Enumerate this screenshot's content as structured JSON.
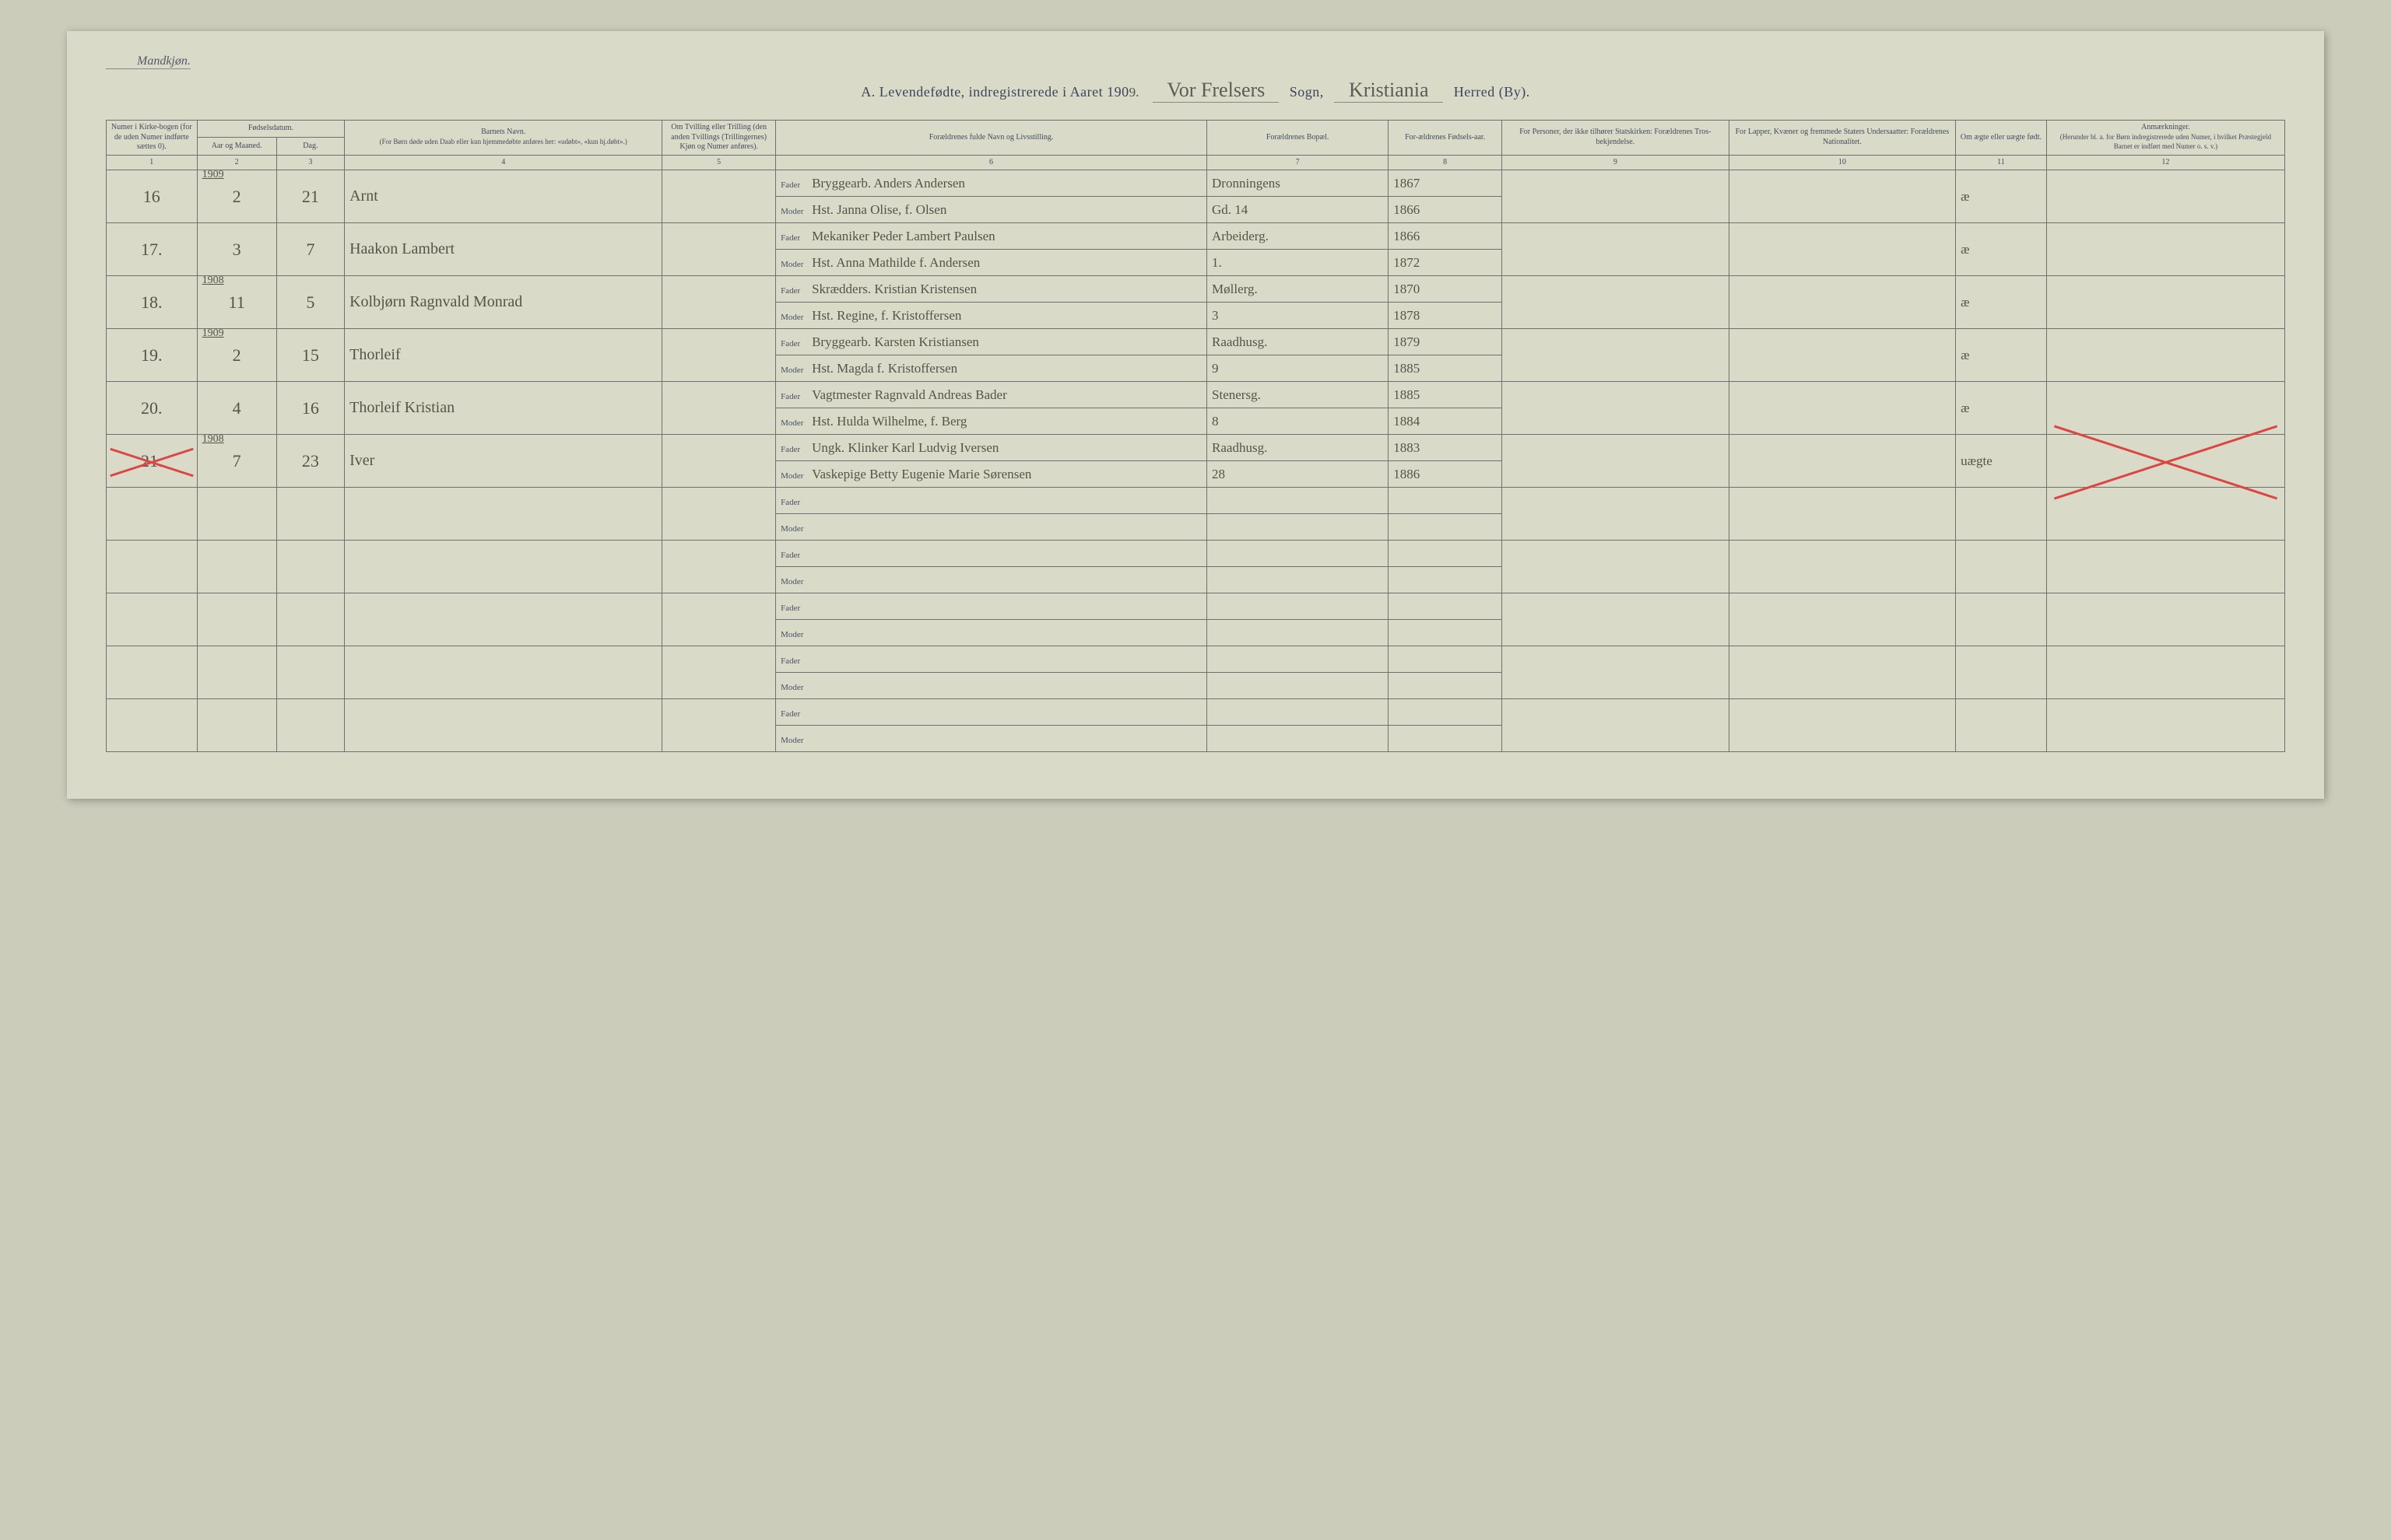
{
  "header": {
    "gender_label": "Mandkjøn.",
    "title_prefix": "A.  Levendefødte, indregistrerede i Aaret 190",
    "year_last_digit": "9.",
    "parish": "Vor Frelsers",
    "parish_label": "Sogn,",
    "district": "Kristiania",
    "district_label": "Herred (By)."
  },
  "columns": {
    "c1": "Numer i Kirke-bogen (for de uden Numer indførte sættes 0).",
    "c2_top": "Fødselsdatum.",
    "c2a": "Aar og Maaned.",
    "c2b": "Dag.",
    "c4_top": "Barnets Navn.",
    "c4_sub": "(For Børn døde uden Daab eller kun hjemmedøbte anføres her: «udøbt», «kun hj.døbt».)",
    "c5": "Om Tvilling eller Trilling (den anden Tvillings (Trillingernes) Kjøn og Numer anføres).",
    "c6": "Forældrenes fulde Navn og Livsstilling.",
    "c7": "Forældrenes Bopæl.",
    "c8": "For-ældrenes Fødsels-aar.",
    "c9": "For Personer, der ikke tilhører Statskirken: Forældrenes Tros-bekjendelse.",
    "c10": "For Lapper, Kvæner og fremmede Staters Undersaatter: Forældrenes Nationalitet.",
    "c11": "Om ægte eller uægte født.",
    "c12_top": "Anmærkninger.",
    "c12_sub": "(Herunder bl. a. for Børn indregistrerede uden Numer, i hvilket Præstegjeld Barnet er indført med Numer o. s. v.)"
  },
  "colnums": [
    "1",
    "2",
    "3",
    "4",
    "5",
    "6",
    "7",
    "8",
    "9",
    "10",
    "11",
    "12"
  ],
  "parent_labels": {
    "father": "Fader",
    "mother": "Moder"
  },
  "rows": [
    {
      "no": "16",
      "year_over": "1909",
      "month": "2",
      "day": "21",
      "name": "Arnt",
      "father": "Bryggearb. Anders Andersen",
      "mother": "Hst. Janna Olise, f. Olsen",
      "residence_f": "Dronningens",
      "residence_m": "Gd. 14",
      "fyear": "1867",
      "myear": "1866",
      "legit": "æ",
      "crossed": false
    },
    {
      "no": "17.",
      "year_over": "",
      "month": "3",
      "day": "7",
      "name": "Haakon Lambert",
      "father": "Mekaniker Peder Lambert Paulsen",
      "mother": "Hst. Anna Mathilde f. Andersen",
      "residence_f": "Arbeiderg.",
      "residence_m": "1.",
      "fyear": "1866",
      "myear": "1872",
      "legit": "æ",
      "crossed": false
    },
    {
      "no": "18.",
      "year_over": "1908",
      "month": "11",
      "day": "5",
      "name": "Kolbjørn Ragnvald Monrad",
      "father": "Skrædders. Kristian Kristensen",
      "mother": "Hst. Regine, f. Kristoffersen",
      "residence_f": "Møllerg.",
      "residence_m": "3",
      "fyear": "1870",
      "myear": "1878",
      "legit": "æ",
      "crossed": false
    },
    {
      "no": "19.",
      "year_over": "1909",
      "month": "2",
      "day": "15",
      "name": "Thorleif",
      "father": "Bryggearb. Karsten Kristiansen",
      "mother": "Hst. Magda f. Kristoffersen",
      "residence_f": "Raadhusg.",
      "residence_m": "9",
      "fyear": "1879",
      "myear": "1885",
      "legit": "æ",
      "crossed": false
    },
    {
      "no": "20.",
      "year_over": "",
      "month": "4",
      "day": "16",
      "name": "Thorleif Kristian",
      "father": "Vagtmester Ragnvald Andreas Bader",
      "mother": "Hst. Hulda Wilhelme, f. Berg",
      "residence_f": "Stenersg.",
      "residence_m": "8",
      "fyear": "1885",
      "myear": "1884",
      "legit": "æ",
      "crossed": false
    },
    {
      "no": "21.",
      "year_over": "1908",
      "month": "7",
      "day": "23",
      "name": "Iver",
      "father": "Ungk. Klinker Karl Ludvig Iversen",
      "mother": "Vaskepige Betty Eugenie Marie Sørensen",
      "residence_f": "Raadhusg.",
      "residence_m": "28",
      "fyear": "1883",
      "myear": "1886",
      "legit": "uægte",
      "crossed": true
    }
  ],
  "empty_rows": 5,
  "styling": {
    "page_bg": "#d9dac8",
    "rule_color": "#707070",
    "heavy_rule": "#4b4b4b",
    "print_color": "#3e4559",
    "script_color": "#545548",
    "cross_color": "#d44",
    "script_font": "Brush Script MT",
    "print_font": "Georgia"
  }
}
